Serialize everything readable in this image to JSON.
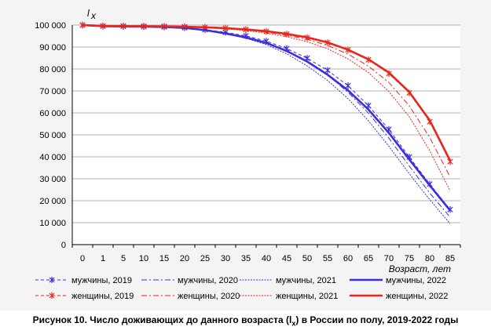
{
  "caption": {
    "prefix": "Рисунок 10. Число доживающих до данного возраста (l",
    "sub": "x",
    "suffix": ") в России по полу, 2019-2022 годы"
  },
  "chart_data": {
    "type": "line",
    "ylabel_main": "l",
    "ylabel_sub": "x",
    "xlabel": "Возраст, лет",
    "ylim": [
      0,
      100000
    ],
    "yticks": [
      0,
      10000,
      20000,
      30000,
      40000,
      50000,
      60000,
      70000,
      80000,
      90000,
      100000
    ],
    "ytick_labels": [
      "0",
      "10 000",
      "20 000",
      "30 000",
      "40 000",
      "50 000",
      "60 000",
      "70 000",
      "80 000",
      "90 000",
      "100 000"
    ],
    "categories": [
      "0",
      "1",
      "5",
      "10",
      "15",
      "20",
      "25",
      "30",
      "35",
      "40",
      "45",
      "50",
      "55",
      "60",
      "65",
      "70",
      "75",
      "80",
      "85"
    ],
    "grid": "horizontal",
    "legend_position": "bottom",
    "series": [
      {
        "name": "мужчины, 2019",
        "color": "#3a2ee0",
        "style": "dash-marker-x",
        "values": [
          100000,
          99500,
          99400,
          99300,
          99150,
          98800,
          97900,
          96700,
          95100,
          92700,
          89300,
          84900,
          79400,
          72400,
          63300,
          52500,
          39900,
          27600,
          16000
        ]
      },
      {
        "name": "мужчины, 2020",
        "color": "#3a2ee0",
        "style": "dashdot",
        "values": [
          100000,
          99500,
          99400,
          99300,
          99100,
          98700,
          97700,
          96300,
          94600,
          92000,
          88200,
          83300,
          77200,
          69400,
          59900,
          48500,
          35800,
          23500,
          12500
        ]
      },
      {
        "name": "мужчины, 2021",
        "color": "#3a2ee0",
        "style": "dotted",
        "values": [
          100000,
          99500,
          99400,
          99300,
          99050,
          98600,
          97500,
          95900,
          94000,
          91100,
          86900,
          81400,
          74800,
          66500,
          56400,
          44800,
          32300,
          20500,
          9500
        ]
      },
      {
        "name": "мужчины, 2022",
        "color": "#3a2ee0",
        "style": "solid",
        "values": [
          100000,
          99500,
          99400,
          99300,
          99100,
          98700,
          97700,
          96200,
          94400,
          91900,
          88200,
          83400,
          77400,
          70300,
          61500,
          50900,
          38800,
          27000,
          15500
        ]
      },
      {
        "name": "женщины, 2019",
        "color": "#e8261b",
        "style": "dash-marker-x",
        "values": [
          100000,
          99600,
          99550,
          99500,
          99400,
          99250,
          99000,
          98600,
          98000,
          97100,
          95900,
          94300,
          92000,
          88700,
          84200,
          77900,
          69100,
          56000,
          37800
        ]
      },
      {
        "name": "женщины, 2020",
        "color": "#e8261b",
        "style": "dashdot",
        "values": [
          100000,
          99600,
          99550,
          99500,
          99400,
          99250,
          98950,
          98500,
          97800,
          96800,
          95400,
          93500,
          90700,
          86800,
          81300,
          73900,
          63200,
          48800,
          30800
        ]
      },
      {
        "name": "женщины, 2021",
        "color": "#e8261b",
        "style": "dotted",
        "values": [
          100000,
          99600,
          99550,
          99500,
          99400,
          99200,
          98900,
          98300,
          97500,
          96300,
          94700,
          92400,
          89200,
          84600,
          78400,
          69700,
          58200,
          42800,
          24500
        ]
      },
      {
        "name": "женщины, 2022",
        "color": "#e8261b",
        "style": "solid",
        "values": [
          100000,
          99600,
          99550,
          99500,
          99400,
          99250,
          99000,
          98600,
          98000,
          97200,
          96000,
          94400,
          92100,
          88800,
          84400,
          78400,
          69500,
          56600,
          38200
        ]
      }
    ]
  }
}
